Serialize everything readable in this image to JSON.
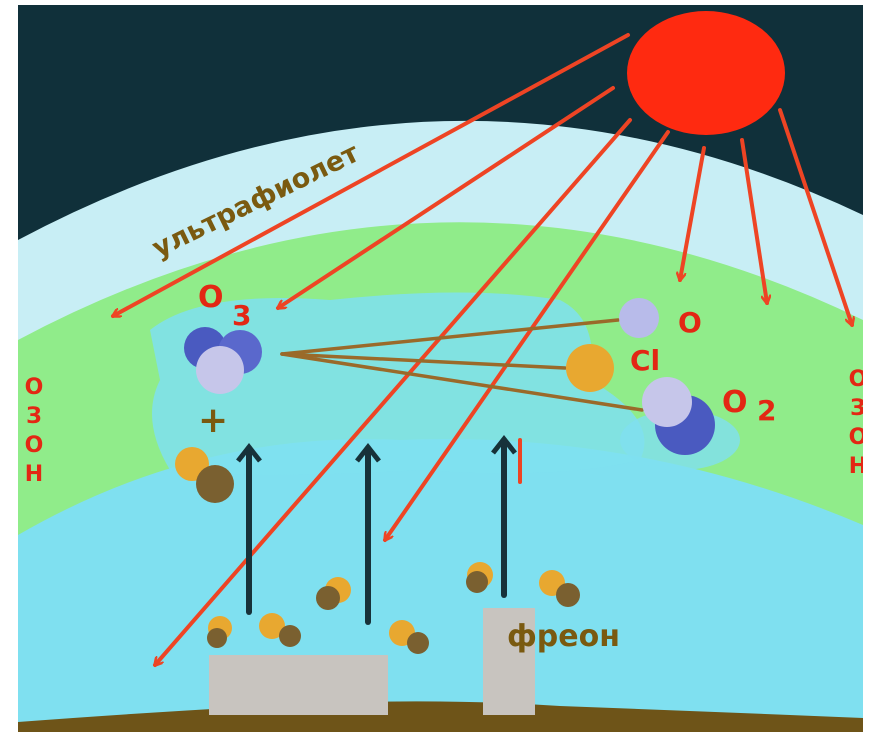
{
  "labels": {
    "ultraviolet": "ультрафиолет",
    "ozone_left": "ОЗОН",
    "ozone_right": "ОЗОН",
    "o3_base": "O",
    "o3_sub": "3",
    "o_atom": "O",
    "chlorine": "Cl",
    "o2_base": "O",
    "o2_sub": "2",
    "plus": "+",
    "freon": "фреон"
  },
  "colors": {
    "space": "#10303a",
    "upper_atmosphere": "#c8eef5",
    "ozone_layer": "#90ec8a",
    "lower_atmosphere": "#7fe0f0",
    "ground": "#6e5418",
    "sun": "#ff2a10",
    "uv_ray": "#ee4424",
    "label_red": "#e32714",
    "label_brown": "#7a5a10",
    "updraft_arrow": "#17323a",
    "building": "#c8c4bf",
    "oxygen_atom": "#b8bbea",
    "ozone_blue": "#4a5ac0",
    "chlorine_atom": "#e8a830",
    "freon_dark": "#7a6030",
    "bond_line": "#9a6a2a"
  }
}
